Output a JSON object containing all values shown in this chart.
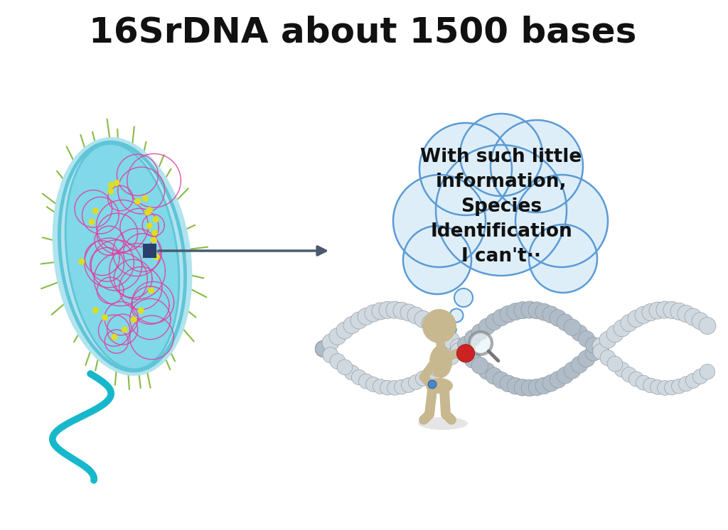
{
  "title": "16SrDNA about 1500 bases",
  "title_fontsize": 36,
  "title_color": "#111111",
  "bubble_text": "With such little\ninformation,\nSpecies\nIdentification\nI can't··",
  "bubble_text_fontsize": 19,
  "bubble_fill": "#deeef8",
  "bubble_edge": "#5b9bd5",
  "arrow_color": "#4a5a70",
  "bact_outer_color": "#b0e4ee",
  "bact_inner_color": "#80d8e8",
  "bact_edge_color": "#60c4d8",
  "dna_color": "#e040a0",
  "flagella_color": "#18b8cc",
  "pili_color": "#88bb44",
  "dot_color": "#dddd22",
  "marker_color": "#2a3f6b",
  "bead_color1": "#d0d8e0",
  "bead_color2": "#b0bcc8",
  "bead_edge": "#889098",
  "bead_red": "#cc2222",
  "figure_body_color": "#c8b890",
  "background_color": "#ffffff"
}
